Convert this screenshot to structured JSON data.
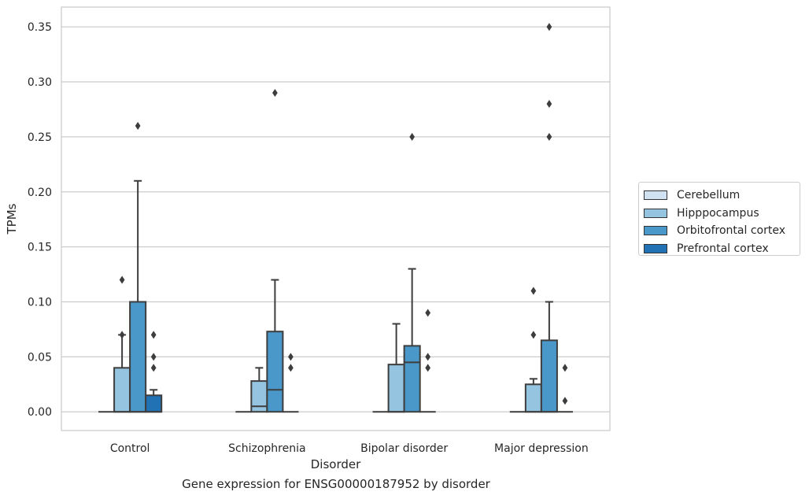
{
  "caption": "Gene expression for ENSG00000187952 by disorder",
  "chart_data": {
    "type": "box",
    "title": "",
    "xlabel": "Disorder",
    "ylabel": "TPMs",
    "ylim": [
      -0.017,
      0.368
    ],
    "yticks": [
      0.0,
      0.05,
      0.1,
      0.15,
      0.2,
      0.25,
      0.3,
      0.35
    ],
    "ytick_labels": [
      "0.00",
      "0.05",
      "0.10",
      "0.15",
      "0.20",
      "0.25",
      "0.30",
      "0.35"
    ],
    "grid": true,
    "legend_position": "right",
    "categories": [
      "Control",
      "Schizophrenia",
      "Bipolar disorder",
      "Major depression"
    ],
    "series": [
      {
        "name": "Cerebellum",
        "color": "#d0e1f2",
        "boxes": [
          {
            "q1": 0,
            "median": 0,
            "q3": 0,
            "whisker_low": 0,
            "whisker_high": 0,
            "outliers": []
          },
          {
            "q1": 0,
            "median": 0,
            "q3": 0,
            "whisker_low": 0,
            "whisker_high": 0,
            "outliers": []
          },
          {
            "q1": 0,
            "median": 0,
            "q3": 0,
            "whisker_low": 0,
            "whisker_high": 0,
            "outliers": []
          },
          {
            "q1": 0,
            "median": 0,
            "q3": 0,
            "whisker_low": 0,
            "whisker_high": 0,
            "outliers": []
          }
        ]
      },
      {
        "name": "Hipppocampus",
        "color": "#94c4df",
        "boxes": [
          {
            "q1": 0,
            "median": 0,
            "q3": 0.04,
            "whisker_low": 0,
            "whisker_high": 0.07,
            "outliers": [
              0.07,
              0.12
            ]
          },
          {
            "q1": 0,
            "median": 0.005,
            "q3": 0.028,
            "whisker_low": 0,
            "whisker_high": 0.04,
            "outliers": []
          },
          {
            "q1": 0,
            "median": 0,
            "q3": 0.043,
            "whisker_low": 0,
            "whisker_high": 0.08,
            "outliers": []
          },
          {
            "q1": 0,
            "median": 0,
            "q3": 0.025,
            "whisker_low": 0,
            "whisker_high": 0.03,
            "outliers": [
              0.07,
              0.11
            ]
          }
        ]
      },
      {
        "name": "Orbitofrontal cortex",
        "color": "#4a98c9",
        "boxes": [
          {
            "q1": 0,
            "median": 0,
            "q3": 0.1,
            "whisker_low": 0,
            "whisker_high": 0.21,
            "outliers": [
              0.26
            ]
          },
          {
            "q1": 0,
            "median": 0.02,
            "q3": 0.073,
            "whisker_low": 0,
            "whisker_high": 0.12,
            "outliers": [
              0.29
            ]
          },
          {
            "q1": 0,
            "median": 0.045,
            "q3": 0.06,
            "whisker_low": 0,
            "whisker_high": 0.13,
            "outliers": [
              0.25
            ]
          },
          {
            "q1": 0,
            "median": 0,
            "q3": 0.065,
            "whisker_low": 0,
            "whisker_high": 0.1,
            "outliers": [
              0.25,
              0.28,
              0.35
            ]
          }
        ]
      },
      {
        "name": "Prefrontal cortex",
        "color": "#2171b5",
        "boxes": [
          {
            "q1": 0,
            "median": 0,
            "q3": 0.015,
            "whisker_low": 0,
            "whisker_high": 0.02,
            "outliers": [
              0.04,
              0.05,
              0.07
            ]
          },
          {
            "q1": 0,
            "median": 0,
            "q3": 0,
            "whisker_low": 0,
            "whisker_high": 0,
            "outliers": [
              0.04,
              0.05
            ]
          },
          {
            "q1": 0,
            "median": 0,
            "q3": 0,
            "whisker_low": 0,
            "whisker_high": 0,
            "outliers": [
              0.04,
              0.05,
              0.09
            ]
          },
          {
            "q1": 0,
            "median": 0,
            "q3": 0,
            "whisker_low": 0,
            "whisker_high": 0,
            "outliers": [
              0.01,
              0.04
            ]
          }
        ]
      }
    ]
  }
}
